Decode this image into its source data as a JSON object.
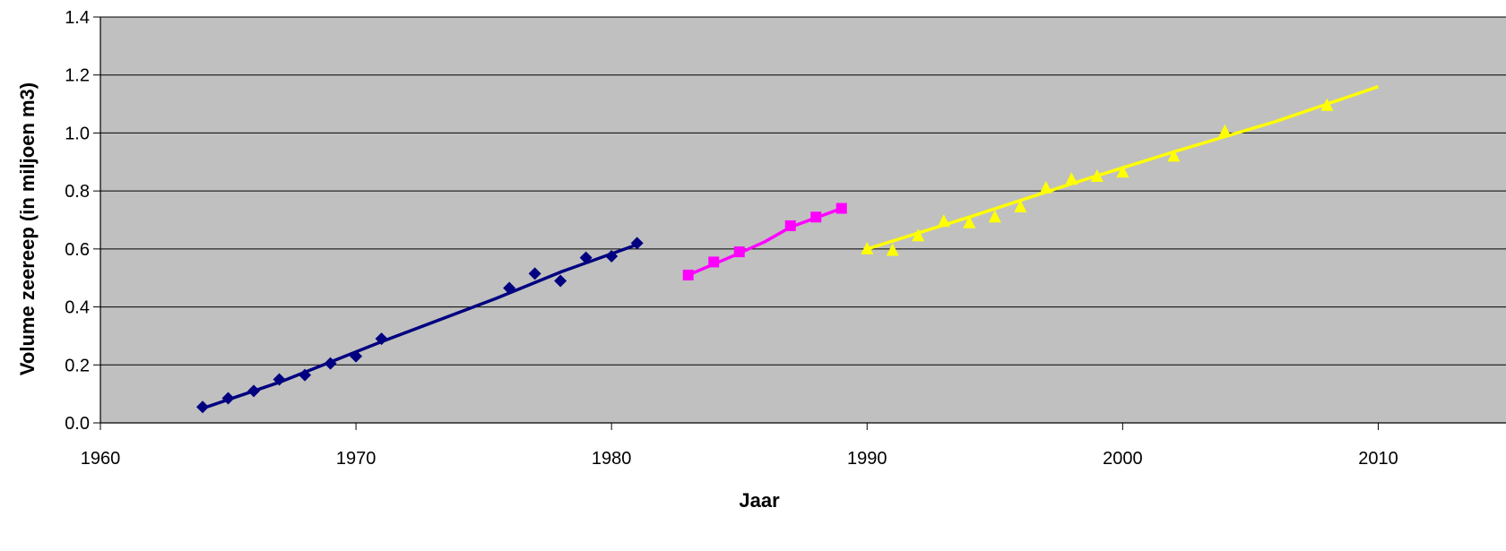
{
  "chart_data": {
    "type": "scatter",
    "title": "",
    "xlabel": "Jaar",
    "ylabel": "Volume zeereep (in miljoen m3)",
    "xlim": [
      1960,
      2015
    ],
    "ylim": [
      0,
      1.4
    ],
    "x_ticks": [
      {
        "value": 1960,
        "label": "1960"
      },
      {
        "value": 1970,
        "label": "1970"
      },
      {
        "value": 1980,
        "label": "1980"
      },
      {
        "value": 1990,
        "label": "1990"
      },
      {
        "value": 2000,
        "label": "2000"
      },
      {
        "value": 2010,
        "label": "2010"
      }
    ],
    "y_ticks": [
      {
        "value": 0.0,
        "label": "0.0"
      },
      {
        "value": 0.2,
        "label": "0.2"
      },
      {
        "value": 0.4,
        "label": "0.4"
      },
      {
        "value": 0.6,
        "label": "0.6"
      },
      {
        "value": 0.8,
        "label": "0.8"
      },
      {
        "value": 1.0,
        "label": "1.0"
      },
      {
        "value": 1.2,
        "label": "1.2"
      },
      {
        "value": 1.4,
        "label": "1.4"
      }
    ],
    "grid": "horizontal",
    "plot_background": "#c0c0c0",
    "series": [
      {
        "marker": "diamond",
        "color": "#000080",
        "points": [
          {
            "x": 1964,
            "y": 0.055
          },
          {
            "x": 1965,
            "y": 0.085
          },
          {
            "x": 1966,
            "y": 0.11
          },
          {
            "x": 1967,
            "y": 0.15
          },
          {
            "x": 1968,
            "y": 0.165
          },
          {
            "x": 1969,
            "y": 0.205
          },
          {
            "x": 1970,
            "y": 0.23
          },
          {
            "x": 1971,
            "y": 0.29
          },
          {
            "x": 1976,
            "y": 0.465
          },
          {
            "x": 1977,
            "y": 0.515
          },
          {
            "x": 1978,
            "y": 0.49
          },
          {
            "x": 1979,
            "y": 0.57
          },
          {
            "x": 1980,
            "y": 0.575
          },
          {
            "x": 1981,
            "y": 0.62
          }
        ],
        "trend": [
          {
            "x": 1964,
            "y": 0.05
          },
          {
            "x": 1967,
            "y": 0.14
          },
          {
            "x": 1971,
            "y": 0.28
          },
          {
            "x": 1975.5,
            "y": 0.43
          },
          {
            "x": 1978,
            "y": 0.52
          },
          {
            "x": 1981,
            "y": 0.615
          }
        ]
      },
      {
        "marker": "square",
        "color": "#ff00ff",
        "points": [
          {
            "x": 1983,
            "y": 0.51
          },
          {
            "x": 1984,
            "y": 0.555
          },
          {
            "x": 1985,
            "y": 0.59
          },
          {
            "x": 1987,
            "y": 0.68
          },
          {
            "x": 1988,
            "y": 0.71
          },
          {
            "x": 1989,
            "y": 0.74
          }
        ],
        "trend": [
          {
            "x": 1983,
            "y": 0.51
          },
          {
            "x": 1985,
            "y": 0.585
          },
          {
            "x": 1986,
            "y": 0.625
          },
          {
            "x": 1987,
            "y": 0.675
          },
          {
            "x": 1989,
            "y": 0.74
          }
        ]
      },
      {
        "marker": "triangle",
        "color": "#ffff00",
        "points": [
          {
            "x": 1990,
            "y": 0.6
          },
          {
            "x": 1991,
            "y": 0.595
          },
          {
            "x": 1992,
            "y": 0.645
          },
          {
            "x": 1993,
            "y": 0.695
          },
          {
            "x": 1994,
            "y": 0.69
          },
          {
            "x": 1995,
            "y": 0.71
          },
          {
            "x": 1996,
            "y": 0.745
          },
          {
            "x": 1997,
            "y": 0.81
          },
          {
            "x": 1998,
            "y": 0.84
          },
          {
            "x": 1999,
            "y": 0.85
          },
          {
            "x": 2000,
            "y": 0.865
          },
          {
            "x": 2002,
            "y": 0.92
          },
          {
            "x": 2004,
            "y": 1.005
          },
          {
            "x": 2008,
            "y": 1.095
          }
        ],
        "trend": [
          {
            "x": 1990,
            "y": 0.6
          },
          {
            "x": 1994,
            "y": 0.71
          },
          {
            "x": 1998,
            "y": 0.825
          },
          {
            "x": 2002,
            "y": 0.935
          },
          {
            "x": 2006,
            "y": 1.04
          },
          {
            "x": 2010,
            "y": 1.16
          }
        ]
      }
    ]
  }
}
